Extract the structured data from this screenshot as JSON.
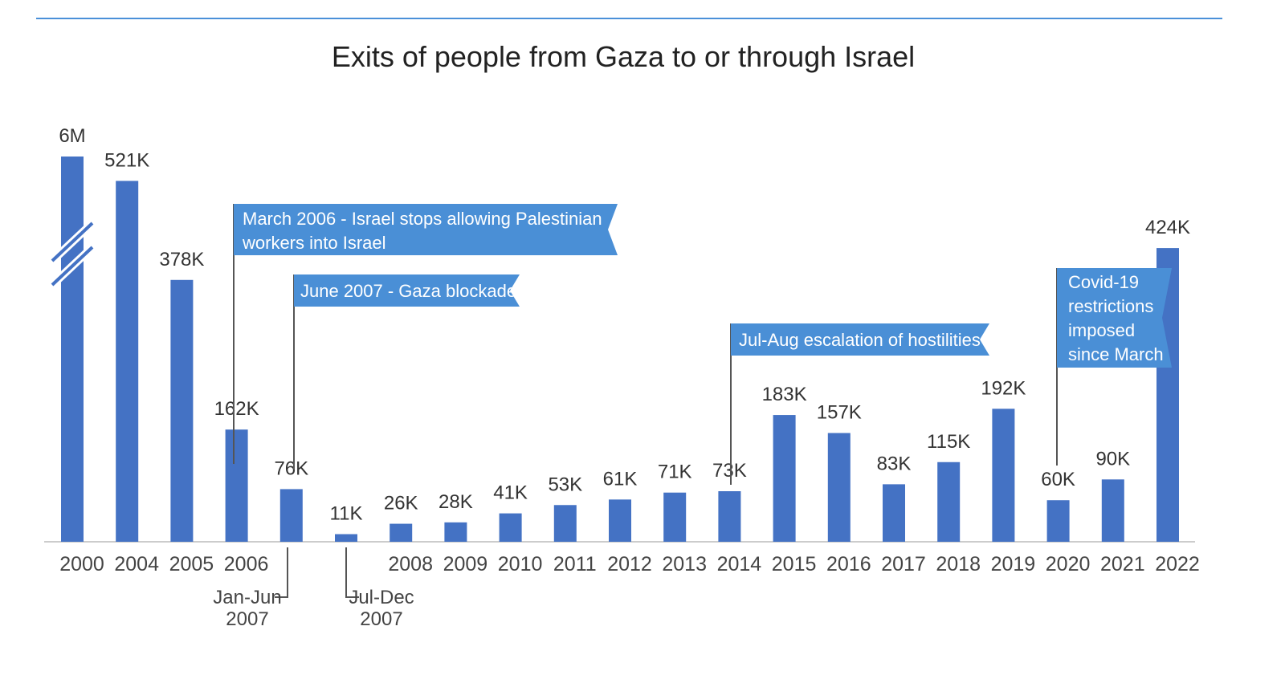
{
  "colors": {
    "bar": "#4472c4",
    "banner": "#4a8fd6",
    "text": "#333333",
    "subtext": "#444444",
    "leader": "#555555",
    "axis": "#cccccc",
    "rule": "#4a90d9"
  },
  "chart_data": {
    "type": "bar",
    "title": "Exits of people from Gaza to or through Israel",
    "xlabel": "",
    "ylabel": "",
    "axis_break": true,
    "grid": false,
    "legend": "none",
    "categories": [
      "2000",
      "2004",
      "2005",
      "2006",
      "Jan-Jun 2007",
      "Jul-Dec 2007",
      "2008",
      "2009",
      "2010",
      "2011",
      "2012",
      "2013",
      "2014",
      "2015",
      "2016",
      "2017",
      "2018",
      "2019",
      "2020",
      "2021",
      "2022"
    ],
    "tick_labels": [
      "2000",
      "2004",
      "2005",
      "2006",
      "",
      "",
      "2008",
      "2009",
      "2010",
      "2011",
      "2012",
      "2013",
      "2014",
      "2015",
      "2016",
      "2017",
      "2018",
      "2019",
      "2020",
      "2021",
      "2022"
    ],
    "values": [
      6000000,
      521000,
      378000,
      162000,
      76000,
      11000,
      26000,
      28000,
      41000,
      53000,
      61000,
      71000,
      73000,
      183000,
      157000,
      83000,
      115000,
      192000,
      60000,
      90000,
      424000
    ],
    "value_labels": [
      "6M",
      "521K",
      "378K",
      "162K",
      "76K",
      "11K",
      "26K",
      "28K",
      "41K",
      "53K",
      "61K",
      "71K",
      "73K",
      "183K",
      "157K",
      "83K",
      "115K",
      "192K",
      "60K",
      "90K",
      "424K"
    ],
    "sub_labels": [
      {
        "category_index": 4,
        "lines": [
          "Jan-Jun",
          "2007"
        ]
      },
      {
        "category_index": 5,
        "lines": [
          "Jul-Dec",
          "2007"
        ]
      }
    ],
    "annotations": [
      {
        "category_index": 3,
        "lines": [
          "March 2006 - Israel stops allowing Palestinian",
          "workers into Israel"
        ]
      },
      {
        "category_index": 4,
        "lines": [
          "June 2007 - Gaza blockade"
        ]
      },
      {
        "category_index": 12,
        "lines": [
          "Jul-Aug escalation of hostilities"
        ]
      },
      {
        "category_index": 18,
        "lines": [
          "Covid-19",
          "restrictions",
          "imposed",
          "since March"
        ]
      }
    ]
  }
}
